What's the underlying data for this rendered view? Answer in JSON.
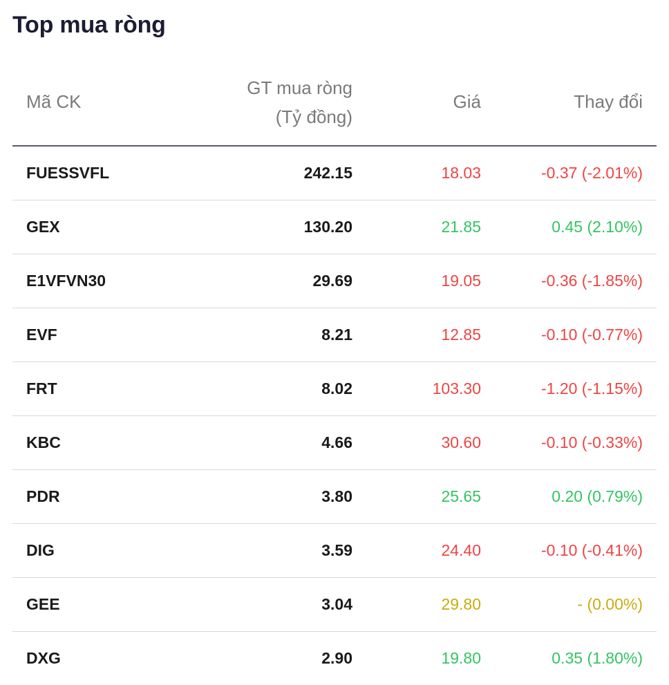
{
  "title": "Top mua ròng",
  "columns": {
    "code": "Mã CK",
    "value_line1": "GT mua ròng",
    "value_line2": "(Tỷ đồng)",
    "price": "Giá",
    "change": "Thay đổi"
  },
  "colors": {
    "down": "#ef4444",
    "up": "#34c463",
    "reference": "#c9ad0e"
  },
  "rows": [
    {
      "code": "FUESSVFL",
      "value": "242.15",
      "price": "18.03",
      "change": "-0.37 (-2.01%)",
      "trend": "down"
    },
    {
      "code": "GEX",
      "value": "130.20",
      "price": "21.85",
      "change": "0.45 (2.10%)",
      "trend": "up"
    },
    {
      "code": "E1VFVN30",
      "value": "29.69",
      "price": "19.05",
      "change": "-0.36 (-1.85%)",
      "trend": "down"
    },
    {
      "code": "EVF",
      "value": "8.21",
      "price": "12.85",
      "change": "-0.10 (-0.77%)",
      "trend": "down"
    },
    {
      "code": "FRT",
      "value": "8.02",
      "price": "103.30",
      "change": "-1.20 (-1.15%)",
      "trend": "down"
    },
    {
      "code": "KBC",
      "value": "4.66",
      "price": "30.60",
      "change": "-0.10 (-0.33%)",
      "trend": "down"
    },
    {
      "code": "PDR",
      "value": "3.80",
      "price": "25.65",
      "change": "0.20 (0.79%)",
      "trend": "up"
    },
    {
      "code": "DIG",
      "value": "3.59",
      "price": "24.40",
      "change": "-0.10 (-0.41%)",
      "trend": "down"
    },
    {
      "code": "GEE",
      "value": "3.04",
      "price": "29.80",
      "change": "- (0.00%)",
      "trend": "ref"
    },
    {
      "code": "DXG",
      "value": "2.90",
      "price": "19.80",
      "change": "0.35 (1.80%)",
      "trend": "up"
    }
  ]
}
